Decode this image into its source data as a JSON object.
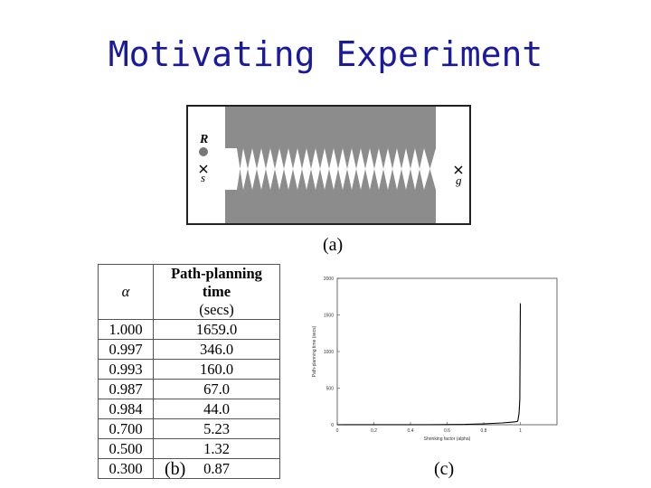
{
  "slide": {
    "title": "Motivating Experiment"
  },
  "figure_a": {
    "caption": "(a)",
    "robot_label": "R",
    "start_label": "s",
    "goal_label": "g",
    "obstacle_color": "#8c8c8c"
  },
  "figure_b": {
    "caption": "(b)",
    "header_alpha": "α",
    "header_time_line1": "Path-planning time",
    "header_time_line2": "(secs)",
    "rows": [
      {
        "alpha": "1.000",
        "time": "1659.0"
      },
      {
        "alpha": "0.997",
        "time": "346.0"
      },
      {
        "alpha": "0.993",
        "time": "160.0"
      },
      {
        "alpha": "0.987",
        "time": "67.0"
      },
      {
        "alpha": "0.984",
        "time": "44.0"
      },
      {
        "alpha": "0.700",
        "time": "5.23"
      },
      {
        "alpha": "0.500",
        "time": "1.32"
      },
      {
        "alpha": "0.300",
        "time": "0.87"
      }
    ]
  },
  "figure_c": {
    "caption": "(c)"
  },
  "chart_data": {
    "type": "line",
    "xlabel": "Shrinking factor (alpha)",
    "ylabel": "Path-planning time (secs)",
    "xlim": [
      0,
      1.2
    ],
    "ylim": [
      0,
      2000
    ],
    "xticks": [
      "0",
      "0.2",
      "0.4",
      "0.6",
      "0.8",
      "1"
    ],
    "yticks": [
      "0",
      "500",
      "1000",
      "1500",
      "2000"
    ],
    "series": [
      {
        "x": [
          0.0,
          0.3,
          0.5,
          0.7,
          0.8,
          0.9,
          0.95,
          0.97,
          0.984,
          0.987,
          0.993,
          0.997,
          1.0
        ],
        "y": [
          0.5,
          0.87,
          1.32,
          5.23,
          12,
          25,
          35,
          40,
          44,
          67,
          160,
          346,
          1659
        ]
      }
    ],
    "grid": false
  }
}
